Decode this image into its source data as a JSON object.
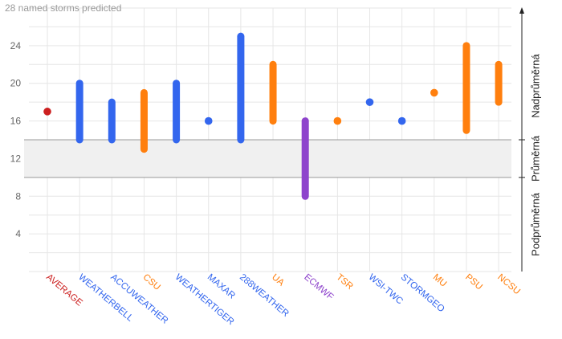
{
  "chart_data": {
    "type": "range",
    "note": "28 named storms predicted",
    "ylim": [
      0,
      28
    ],
    "yticks": [
      4,
      8,
      12,
      16,
      20,
      24
    ],
    "average_band": [
      10,
      14
    ],
    "band_labels": [
      "Podprůměrná",
      "Průměrná",
      "Nadprůměrná"
    ],
    "forecasters": [
      {
        "name": "AVERAGE",
        "low": 17,
        "high": 17,
        "color": "#cc1f1f"
      },
      {
        "name": "WEATHERBELL",
        "low": 14,
        "high": 20,
        "color": "#3366ee"
      },
      {
        "name": "ACCUWEATHER",
        "low": 14,
        "high": 18,
        "color": "#3366ee"
      },
      {
        "name": "CSU",
        "low": 13,
        "high": 19,
        "color": "#ff7f0e"
      },
      {
        "name": "WEATHERTIGER",
        "low": 14,
        "high": 20,
        "color": "#3366ee"
      },
      {
        "name": "MAXAR",
        "low": 16,
        "high": 16,
        "color": "#3366ee"
      },
      {
        "name": "288WEATHER",
        "low": 14,
        "high": 25,
        "color": "#3366ee"
      },
      {
        "name": "UA",
        "low": 16,
        "high": 22,
        "color": "#ff7f0e"
      },
      {
        "name": "ECMWF",
        "low": 8,
        "high": 16,
        "color": "#8e44cc"
      },
      {
        "name": "TSR",
        "low": 16,
        "high": 16,
        "color": "#ff7f0e"
      },
      {
        "name": "WSI-TWC",
        "low": 18,
        "high": 18,
        "color": "#3366ee"
      },
      {
        "name": "STORMGEO",
        "low": 16,
        "high": 16,
        "color": "#3366ee"
      },
      {
        "name": "MU",
        "low": 19,
        "high": 19,
        "color": "#ff7f0e"
      },
      {
        "name": "PSU",
        "low": 15,
        "high": 24,
        "color": "#ff7f0e"
      },
      {
        "name": "NCSU",
        "low": 18,
        "high": 22,
        "color": "#ff7f0e"
      }
    ]
  }
}
